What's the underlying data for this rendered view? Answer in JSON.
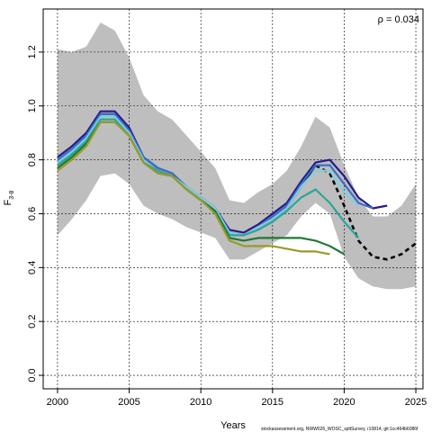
{
  "chart_data": {
    "type": "line",
    "xlabel": "Years",
    "ylabel": "F",
    "ylabel_subscript": "3-8",
    "annotation": "ρ = 0.034",
    "footnote": "stockassessment.org, NWW026_WOSC_spltSurvey, r10814, git:1cc464b6086f",
    "xlim": [
      1999,
      2025.5
    ],
    "ylim": [
      -0.05,
      1.36
    ],
    "x_ticks": [
      2000,
      2005,
      2010,
      2015,
      2020,
      2025
    ],
    "y_ticks": [
      0.0,
      0.2,
      0.4,
      0.6,
      0.8,
      1.0,
      1.2
    ],
    "y_tick_labels": [
      "0.0",
      "0.2",
      "0.4",
      "0.6",
      "0.8",
      "1.0",
      "1.2"
    ],
    "grid": true,
    "confidence_band": {
      "color": "#bebebe",
      "x": [
        2000,
        2001,
        2002,
        2003,
        2004,
        2005,
        2006,
        2007,
        2008,
        2009,
        2010,
        2011,
        2012,
        2013,
        2014,
        2015,
        2016,
        2017,
        2018,
        2019,
        2020,
        2021,
        2022,
        2023,
        2024,
        2025
      ],
      "upper": [
        1.21,
        1.2,
        1.22,
        1.31,
        1.28,
        1.18,
        1.04,
        0.98,
        0.95,
        0.89,
        0.83,
        0.77,
        0.65,
        0.64,
        0.68,
        0.71,
        0.76,
        0.85,
        0.96,
        0.92,
        0.78,
        0.66,
        0.59,
        0.59,
        0.63,
        0.71
      ],
      "lower": [
        0.52,
        0.58,
        0.65,
        0.74,
        0.75,
        0.71,
        0.63,
        0.6,
        0.58,
        0.55,
        0.53,
        0.51,
        0.43,
        0.43,
        0.46,
        0.49,
        0.52,
        0.59,
        0.64,
        0.6,
        0.44,
        0.36,
        0.33,
        0.32,
        0.32,
        0.33
      ]
    },
    "series": [
      {
        "color": "#000000",
        "style": "solid",
        "x": [
          2000,
          2001,
          2002,
          2003,
          2004,
          2005,
          2006,
          2007,
          2008,
          2009,
          2010,
          2011,
          2012,
          2013,
          2014,
          2015,
          2016,
          2017,
          2018
        ],
        "values": [
          0.79,
          0.83,
          0.88,
          0.97,
          0.97,
          0.91,
          0.8,
          0.76,
          0.74,
          0.7,
          0.66,
          0.62,
          0.53,
          0.52,
          0.55,
          0.58,
          0.62,
          0.7,
          0.78
        ]
      },
      {
        "color": "#000000",
        "style": "dashed",
        "x": [
          2018,
          2019,
          2020,
          2021,
          2022,
          2023,
          2024,
          2025
        ],
        "values": [
          0.78,
          0.75,
          0.63,
          0.5,
          0.44,
          0.43,
          0.45,
          0.49
        ]
      },
      {
        "color": "#2a1a8a",
        "style": "solid",
        "x": [
          2000,
          2001,
          2002,
          2003,
          2004,
          2005,
          2006,
          2007,
          2008,
          2009,
          2010,
          2011,
          2012,
          2013,
          2014,
          2015,
          2016,
          2017,
          2018,
          2019,
          2020,
          2021,
          2022,
          2023
        ],
        "values": [
          0.81,
          0.85,
          0.9,
          0.98,
          0.98,
          0.92,
          0.81,
          0.77,
          0.75,
          0.7,
          0.66,
          0.62,
          0.54,
          0.53,
          0.56,
          0.6,
          0.64,
          0.72,
          0.79,
          0.8,
          0.74,
          0.66,
          0.62,
          0.63
        ]
      },
      {
        "color": "#3a6fc8",
        "style": "solid",
        "x": [
          2000,
          2001,
          2002,
          2003,
          2004,
          2005,
          2006,
          2007,
          2008,
          2009,
          2010,
          2011,
          2012,
          2013,
          2014,
          2015,
          2016,
          2017,
          2018,
          2019,
          2020,
          2021,
          2022
        ],
        "values": [
          0.8,
          0.84,
          0.89,
          0.97,
          0.97,
          0.91,
          0.81,
          0.77,
          0.75,
          0.7,
          0.66,
          0.62,
          0.53,
          0.52,
          0.55,
          0.59,
          0.63,
          0.71,
          0.78,
          0.78,
          0.71,
          0.64,
          0.62
        ]
      },
      {
        "color": "#7fcfe0",
        "style": "solid",
        "x": [
          2000,
          2001,
          2002,
          2003,
          2004,
          2005,
          2006,
          2007,
          2008,
          2009,
          2010,
          2011,
          2012,
          2013,
          2014,
          2015,
          2016,
          2017,
          2018,
          2019,
          2020,
          2021
        ],
        "values": [
          0.79,
          0.83,
          0.88,
          0.96,
          0.96,
          0.9,
          0.8,
          0.76,
          0.74,
          0.7,
          0.66,
          0.62,
          0.53,
          0.52,
          0.55,
          0.58,
          0.62,
          0.7,
          0.76,
          0.76,
          0.68,
          0.63
        ]
      },
      {
        "color": "#2aa69a",
        "style": "solid",
        "x": [
          2000,
          2001,
          2002,
          2003,
          2004,
          2005,
          2006,
          2007,
          2008,
          2009,
          2010,
          2011,
          2012,
          2013,
          2014,
          2015,
          2016,
          2017,
          2018,
          2019,
          2020,
          2021
        ],
        "values": [
          0.78,
          0.82,
          0.87,
          0.95,
          0.95,
          0.89,
          0.79,
          0.76,
          0.74,
          0.69,
          0.65,
          0.61,
          0.52,
          0.52,
          0.54,
          0.57,
          0.61,
          0.66,
          0.69,
          0.64,
          0.57,
          0.51
        ]
      },
      {
        "color": "#1e7a34",
        "style": "solid",
        "x": [
          2000,
          2001,
          2002,
          2003,
          2004,
          2005,
          2006,
          2007,
          2008,
          2009,
          2010,
          2011,
          2012,
          2013,
          2014,
          2015,
          2016,
          2017,
          2018,
          2019,
          2020
        ],
        "values": [
          0.77,
          0.81,
          0.86,
          0.94,
          0.94,
          0.89,
          0.79,
          0.75,
          0.74,
          0.69,
          0.65,
          0.61,
          0.51,
          0.5,
          0.51,
          0.51,
          0.51,
          0.51,
          0.5,
          0.48,
          0.45
        ]
      },
      {
        "color": "#9a9a28",
        "style": "solid",
        "x": [
          2000,
          2001,
          2002,
          2003,
          2004,
          2005,
          2006,
          2007,
          2008,
          2009,
          2010,
          2011,
          2012,
          2013,
          2014,
          2015,
          2016,
          2017,
          2018,
          2019
        ],
        "values": [
          0.76,
          0.8,
          0.85,
          0.94,
          0.94,
          0.89,
          0.79,
          0.75,
          0.74,
          0.69,
          0.65,
          0.6,
          0.5,
          0.48,
          0.48,
          0.48,
          0.47,
          0.46,
          0.46,
          0.45
        ]
      }
    ]
  }
}
